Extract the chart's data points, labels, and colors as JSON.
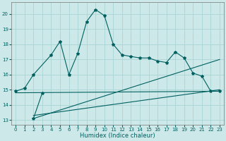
{
  "xlabel": "Humidex (Indice chaleur)",
  "bg_color": "#cce8e8",
  "grid_color": "#aad4d4",
  "line_color": "#006060",
  "xlim": [
    -0.5,
    23.5
  ],
  "ylim": [
    12.7,
    20.8
  ],
  "yticks": [
    13,
    14,
    15,
    16,
    17,
    18,
    19,
    20
  ],
  "xticks": [
    0,
    1,
    2,
    3,
    4,
    5,
    6,
    7,
    8,
    9,
    10,
    11,
    12,
    13,
    14,
    15,
    16,
    17,
    18,
    19,
    20,
    21,
    22,
    23
  ],
  "curve1_x": [
    0,
    1,
    2,
    4,
    5,
    6,
    7,
    8,
    9,
    10,
    11,
    12,
    13,
    14,
    15,
    16,
    17,
    18,
    19,
    20,
    21,
    22,
    23
  ],
  "curve1_y": [
    14.9,
    15.1,
    16.0,
    17.3,
    18.2,
    16.0,
    17.4,
    19.5,
    20.3,
    19.9,
    18.0,
    17.3,
    17.2,
    17.1,
    17.1,
    16.9,
    16.8,
    17.5,
    17.1,
    16.1,
    15.9,
    14.9,
    14.9
  ],
  "curve2_x": [
    2,
    3
  ],
  "curve2_y": [
    13.1,
    14.8
  ],
  "trend1_x": [
    2,
    23
  ],
  "trend1_y": [
    13.1,
    17.0
  ],
  "trend2_x": [
    2,
    23
  ],
  "trend2_y": [
    13.3,
    15.0
  ],
  "trend3_x": [
    0,
    23
  ],
  "trend3_y": [
    14.8,
    14.9
  ]
}
